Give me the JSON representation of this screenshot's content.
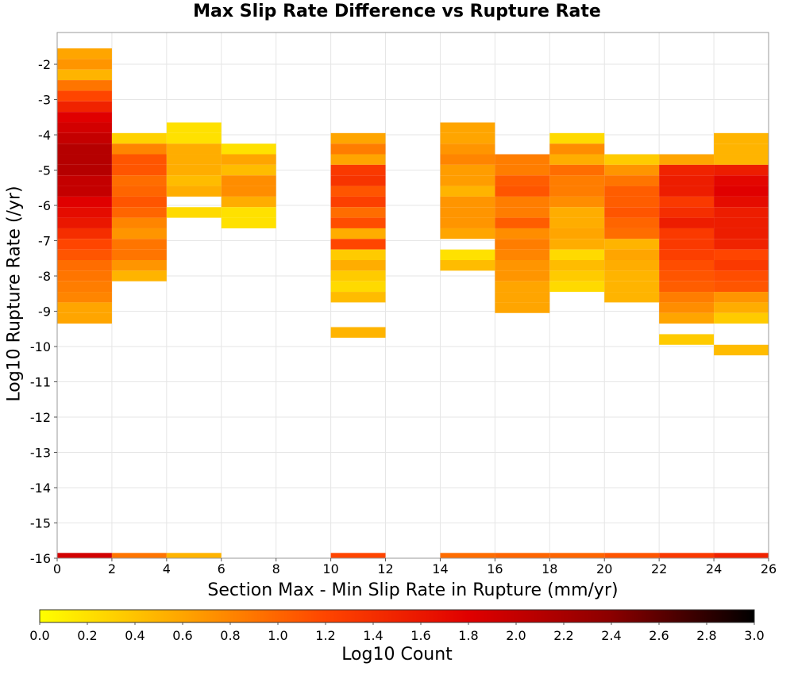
{
  "chart_data": {
    "type": "heatmap",
    "title": "Max Slip Rate Difference vs Rupture Rate",
    "xlabel": "Section Max - Min Slip Rate in Rupture (mm/yr)",
    "ylabel": "Log10 Rupture Rate (/yr)",
    "colorbar_label": "Log10 Count",
    "xlim": [
      0,
      26
    ],
    "ylim": [
      -16,
      -1.1
    ],
    "x_ticks": [
      0,
      2,
      4,
      6,
      8,
      10,
      12,
      14,
      16,
      18,
      20,
      22,
      24,
      26
    ],
    "y_ticks": [
      -16,
      -15,
      -14,
      -13,
      -12,
      -11,
      -10,
      -9,
      -8,
      -7,
      -6,
      -5,
      -4,
      -3,
      -2
    ],
    "colorbar_ticks": [
      0.0,
      0.2,
      0.4,
      0.6,
      0.8,
      1.0,
      1.2,
      1.4,
      1.6,
      1.8,
      2.0,
      2.2,
      2.4,
      2.6,
      2.8,
      3.0
    ],
    "color_range": [
      0,
      3
    ],
    "colormap": [
      "#ffff00",
      "#ffa500",
      "#ff4500",
      "#e00000",
      "#8b0000",
      "#000000"
    ],
    "grid": true,
    "bin_width_x": 2,
    "bin_height_y": 0.3,
    "columns": [
      {
        "x": 0,
        "cells": [
          [
            -1.7,
            0.6
          ],
          [
            -2.0,
            0.7
          ],
          [
            -2.3,
            0.5
          ],
          [
            -2.6,
            0.9
          ],
          [
            -2.9,
            1.2
          ],
          [
            -3.2,
            1.5
          ],
          [
            -3.5,
            1.8
          ],
          [
            -3.8,
            1.9
          ],
          [
            -4.1,
            2.0
          ],
          [
            -4.4,
            2.1
          ],
          [
            -4.7,
            2.1
          ],
          [
            -5.0,
            2.1
          ],
          [
            -5.3,
            2.0
          ],
          [
            -5.6,
            2.0
          ],
          [
            -5.9,
            1.8
          ],
          [
            -6.2,
            1.7
          ],
          [
            -6.5,
            1.6
          ],
          [
            -6.8,
            1.4
          ],
          [
            -7.1,
            1.2
          ],
          [
            -7.4,
            1.1
          ],
          [
            -7.7,
            0.95
          ],
          [
            -8.0,
            0.9
          ],
          [
            -8.3,
            0.85
          ],
          [
            -8.6,
            0.8
          ],
          [
            -8.9,
            0.6
          ],
          [
            -9.2,
            0.6
          ],
          [
            -16.0,
            1.9
          ]
        ]
      },
      {
        "x": 2,
        "cells": [
          [
            -4.1,
            0.3
          ],
          [
            -4.4,
            0.8
          ],
          [
            -4.7,
            1.1
          ],
          [
            -5.0,
            1.1
          ],
          [
            -5.3,
            0.95
          ],
          [
            -5.6,
            1.0
          ],
          [
            -5.9,
            1.1
          ],
          [
            -6.2,
            1.0
          ],
          [
            -6.5,
            0.8
          ],
          [
            -6.8,
            0.7
          ],
          [
            -7.1,
            0.9
          ],
          [
            -7.4,
            0.9
          ],
          [
            -7.7,
            0.7
          ],
          [
            -8.0,
            0.5
          ],
          [
            -16.0,
            0.9
          ]
        ]
      },
      {
        "x": 4,
        "cells": [
          [
            -3.8,
            0.2
          ],
          [
            -4.1,
            0.2
          ],
          [
            -4.4,
            0.55
          ],
          [
            -4.7,
            0.55
          ],
          [
            -5.0,
            0.55
          ],
          [
            -5.3,
            0.45
          ],
          [
            -5.6,
            0.55
          ],
          [
            -6.2,
            0.25
          ],
          [
            -16.0,
            0.5
          ]
        ]
      },
      {
        "x": 6,
        "cells": [
          [
            -4.4,
            0.2
          ],
          [
            -4.7,
            0.6
          ],
          [
            -5.0,
            0.45
          ],
          [
            -5.3,
            0.75
          ],
          [
            -5.6,
            0.75
          ],
          [
            -5.9,
            0.55
          ],
          [
            -6.2,
            0.2
          ],
          [
            -6.5,
            0.2
          ]
        ]
      },
      {
        "x": 10,
        "cells": [
          [
            -4.1,
            0.6
          ],
          [
            -4.4,
            0.85
          ],
          [
            -4.7,
            0.6
          ],
          [
            -5.0,
            1.3
          ],
          [
            -5.3,
            1.35
          ],
          [
            -5.6,
            1.1
          ],
          [
            -5.9,
            1.25
          ],
          [
            -6.2,
            0.95
          ],
          [
            -6.5,
            1.15
          ],
          [
            -6.8,
            0.55
          ],
          [
            -7.1,
            1.2
          ],
          [
            -7.4,
            0.35
          ],
          [
            -7.7,
            0.55
          ],
          [
            -8.0,
            0.35
          ],
          [
            -8.3,
            0.25
          ],
          [
            -8.6,
            0.45
          ],
          [
            -9.6,
            0.5
          ],
          [
            -16.0,
            1.2
          ]
        ]
      },
      {
        "x": 14,
        "cells": [
          [
            -3.8,
            0.6
          ],
          [
            -4.1,
            0.6
          ],
          [
            -4.4,
            0.7
          ],
          [
            -4.7,
            0.8
          ],
          [
            -5.0,
            0.65
          ],
          [
            -5.3,
            0.65
          ],
          [
            -5.6,
            0.5
          ],
          [
            -5.9,
            0.7
          ],
          [
            -6.2,
            0.7
          ],
          [
            -6.5,
            0.7
          ],
          [
            -6.8,
            0.6
          ],
          [
            -7.4,
            0.2
          ],
          [
            -7.7,
            0.45
          ],
          [
            -16.0,
            0.95
          ]
        ]
      },
      {
        "x": 16,
        "cells": [
          [
            -4.7,
            0.85
          ],
          [
            -5.0,
            0.85
          ],
          [
            -5.3,
            1.05
          ],
          [
            -5.6,
            1.1
          ],
          [
            -5.9,
            0.85
          ],
          [
            -6.2,
            0.85
          ],
          [
            -6.5,
            1.05
          ],
          [
            -6.8,
            0.75
          ],
          [
            -7.1,
            0.85
          ],
          [
            -7.4,
            0.8
          ],
          [
            -7.7,
            0.7
          ],
          [
            -8.0,
            0.7
          ],
          [
            -8.3,
            0.6
          ],
          [
            -8.6,
            0.6
          ],
          [
            -8.9,
            0.6
          ],
          [
            -16.0,
            1.0
          ]
        ]
      },
      {
        "x": 18,
        "cells": [
          [
            -4.1,
            0.25
          ],
          [
            -4.4,
            0.75
          ],
          [
            -4.7,
            0.55
          ],
          [
            -5.0,
            0.95
          ],
          [
            -5.3,
            0.85
          ],
          [
            -5.6,
            0.85
          ],
          [
            -5.9,
            0.75
          ],
          [
            -6.2,
            0.55
          ],
          [
            -6.5,
            0.55
          ],
          [
            -6.8,
            0.6
          ],
          [
            -7.1,
            0.55
          ],
          [
            -7.4,
            0.25
          ],
          [
            -7.7,
            0.45
          ],
          [
            -8.0,
            0.35
          ],
          [
            -8.3,
            0.25
          ],
          [
            -16.0,
            1.0
          ]
        ]
      },
      {
        "x": 20,
        "cells": [
          [
            -4.7,
            0.35
          ],
          [
            -5.0,
            0.7
          ],
          [
            -5.3,
            0.9
          ],
          [
            -5.6,
            1.05
          ],
          [
            -5.9,
            1.05
          ],
          [
            -6.2,
            1.1
          ],
          [
            -6.5,
            1.0
          ],
          [
            -6.8,
            0.95
          ],
          [
            -7.1,
            0.5
          ],
          [
            -7.4,
            0.6
          ],
          [
            -7.7,
            0.55
          ],
          [
            -8.0,
            0.5
          ],
          [
            -8.3,
            0.5
          ],
          [
            -8.6,
            0.5
          ],
          [
            -16.0,
            1.1
          ]
        ]
      },
      {
        "x": 22,
        "cells": [
          [
            -4.7,
            0.6
          ],
          [
            -5.0,
            1.5
          ],
          [
            -5.3,
            1.55
          ],
          [
            -5.6,
            1.55
          ],
          [
            -5.9,
            1.3
          ],
          [
            -6.2,
            1.4
          ],
          [
            -6.5,
            1.55
          ],
          [
            -6.8,
            1.3
          ],
          [
            -7.1,
            1.3
          ],
          [
            -7.4,
            1.25
          ],
          [
            -7.7,
            1.15
          ],
          [
            -8.0,
            1.1
          ],
          [
            -8.3,
            1.05
          ],
          [
            -8.6,
            0.85
          ],
          [
            -8.9,
            0.75
          ],
          [
            -9.2,
            0.6
          ],
          [
            -9.8,
            0.35
          ],
          [
            -16.0,
            1.3
          ]
        ]
      },
      {
        "x": 24,
        "cells": [
          [
            -4.1,
            0.5
          ],
          [
            -4.4,
            0.5
          ],
          [
            -4.7,
            0.5
          ],
          [
            -5.0,
            1.55
          ],
          [
            -5.3,
            1.75
          ],
          [
            -5.6,
            1.8
          ],
          [
            -5.9,
            1.7
          ],
          [
            -6.2,
            1.55
          ],
          [
            -6.5,
            1.55
          ],
          [
            -6.8,
            1.55
          ],
          [
            -7.1,
            1.5
          ],
          [
            -7.4,
            1.2
          ],
          [
            -7.7,
            1.3
          ],
          [
            -8.0,
            1.15
          ],
          [
            -8.3,
            1.1
          ],
          [
            -8.6,
            0.7
          ],
          [
            -8.9,
            0.55
          ],
          [
            -9.2,
            0.35
          ],
          [
            -10.1,
            0.45
          ],
          [
            -16.0,
            1.5
          ]
        ]
      }
    ]
  }
}
